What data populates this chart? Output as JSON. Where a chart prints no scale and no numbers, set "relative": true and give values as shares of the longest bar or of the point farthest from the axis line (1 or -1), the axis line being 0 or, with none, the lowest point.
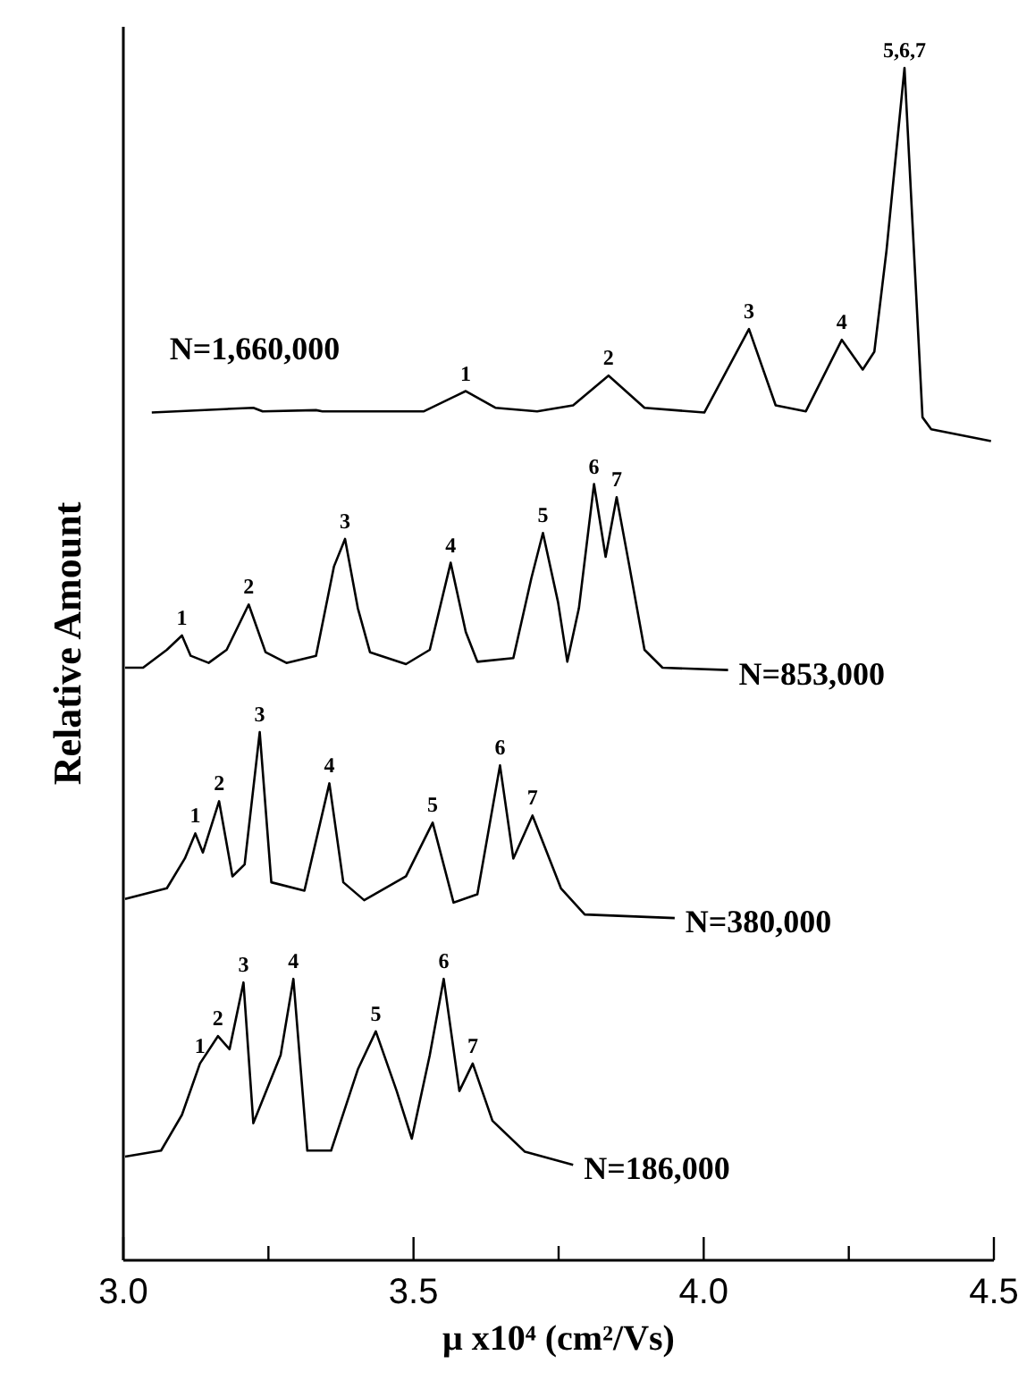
{
  "chart_data": {
    "type": "line",
    "relative": true,
    "xlabel": "μ x10⁴ (cm²/Vs)",
    "ylabel": "Relative Amount",
    "xlim": [
      3.0,
      4.5
    ],
    "xticks": [
      {
        "value": 3.0,
        "label": "3.0"
      },
      {
        "value": 3.25,
        "label": null
      },
      {
        "value": 3.5,
        "label": "3.5"
      },
      {
        "value": 3.75,
        "label": null
      },
      {
        "value": 4.0,
        "label": "4.0"
      },
      {
        "value": 4.25,
        "label": null
      },
      {
        "value": 4.5,
        "label": "4.5"
      }
    ],
    "series": [
      {
        "name": "N=1,660,000",
        "color": "#000000",
        "x": [
          3.049,
          3.224,
          3.24,
          3.332,
          3.343,
          3.518,
          3.59,
          3.641,
          3.713,
          3.775,
          3.836,
          3.898,
          4.001,
          4.078,
          4.124,
          4.176,
          4.238,
          4.274,
          4.294,
          4.315,
          4.346,
          4.377,
          4.392,
          4.495
        ],
        "values": [
          0.711,
          0.715,
          0.712,
          0.713,
          0.712,
          0.712,
          0.729,
          0.715,
          0.712,
          0.717,
          0.742,
          0.715,
          0.711,
          0.781,
          0.717,
          0.712,
          0.772,
          0.747,
          0.762,
          0.847,
          1.0,
          0.707,
          0.697,
          0.687
        ]
      },
      {
        "name": "N=853,000",
        "color": "#000000",
        "x": [
          3.003,
          3.034,
          3.075,
          3.101,
          3.116,
          3.147,
          3.178,
          3.216,
          3.245,
          3.281,
          3.332,
          3.363,
          3.382,
          3.404,
          3.425,
          3.487,
          3.528,
          3.564,
          3.59,
          3.61,
          3.672,
          3.703,
          3.723,
          3.749,
          3.765,
          3.785,
          3.811,
          3.831,
          3.85,
          3.872,
          3.898,
          3.929,
          4.042
        ],
        "values": [
          0.497,
          0.497,
          0.512,
          0.524,
          0.507,
          0.501,
          0.512,
          0.55,
          0.51,
          0.501,
          0.507,
          0.582,
          0.605,
          0.547,
          0.51,
          0.5,
          0.512,
          0.585,
          0.527,
          0.502,
          0.505,
          0.572,
          0.61,
          0.552,
          0.502,
          0.547,
          0.651,
          0.59,
          0.64,
          0.582,
          0.512,
          0.497,
          0.495
        ]
      },
      {
        "name": "N=380,000",
        "color": "#000000",
        "x": [
          3.003,
          3.075,
          3.106,
          3.124,
          3.137,
          3.165,
          3.188,
          3.209,
          3.235,
          3.255,
          3.312,
          3.355,
          3.379,
          3.415,
          3.487,
          3.533,
          3.569,
          3.61,
          3.649,
          3.672,
          3.705,
          3.754,
          3.795,
          3.95
        ],
        "values": [
          0.303,
          0.312,
          0.337,
          0.358,
          0.342,
          0.385,
          0.322,
          0.332,
          0.443,
          0.317,
          0.31,
          0.4,
          0.317,
          0.302,
          0.322,
          0.367,
          0.3,
          0.307,
          0.415,
          0.337,
          0.373,
          0.312,
          0.29,
          0.287
        ]
      },
      {
        "name": "N=186,000",
        "color": "#000000",
        "x": [
          3.003,
          3.065,
          3.101,
          3.132,
          3.163,
          3.183,
          3.207,
          3.224,
          3.271,
          3.293,
          3.317,
          3.358,
          3.404,
          3.435,
          3.471,
          3.497,
          3.528,
          3.552,
          3.579,
          3.602,
          3.636,
          3.692,
          3.775
        ],
        "values": [
          0.087,
          0.092,
          0.122,
          0.165,
          0.188,
          0.177,
          0.233,
          0.115,
          0.172,
          0.236,
          0.092,
          0.092,
          0.16,
          0.192,
          0.142,
          0.102,
          0.172,
          0.236,
          0.142,
          0.165,
          0.117,
          0.091,
          0.08
        ]
      }
    ],
    "annotations": [
      {
        "text": "1",
        "x": 3.59,
        "y": 0.729
      },
      {
        "text": "2",
        "x": 3.836,
        "y": 0.742
      },
      {
        "text": "3",
        "x": 4.078,
        "y": 0.781
      },
      {
        "text": "4",
        "x": 4.238,
        "y": 0.772
      },
      {
        "text": "5,6,7",
        "x": 4.346,
        "y": 1.0
      },
      {
        "text": "1",
        "x": 3.101,
        "y": 0.524
      },
      {
        "text": "2",
        "x": 3.216,
        "y": 0.55
      },
      {
        "text": "3",
        "x": 3.382,
        "y": 0.605
      },
      {
        "text": "4",
        "x": 3.564,
        "y": 0.585
      },
      {
        "text": "5",
        "x": 3.723,
        "y": 0.61
      },
      {
        "text": "6",
        "x": 3.811,
        "y": 0.651
      },
      {
        "text": "7",
        "x": 3.85,
        "y": 0.64
      },
      {
        "text": "1",
        "x": 3.124,
        "y": 0.358
      },
      {
        "text": "2",
        "x": 3.165,
        "y": 0.385
      },
      {
        "text": "3",
        "x": 3.235,
        "y": 0.443
      },
      {
        "text": "4",
        "x": 3.355,
        "y": 0.4
      },
      {
        "text": "5",
        "x": 3.533,
        "y": 0.367
      },
      {
        "text": "6",
        "x": 3.649,
        "y": 0.415
      },
      {
        "text": "7",
        "x": 3.705,
        "y": 0.373
      },
      {
        "text": "1",
        "x": 3.132,
        "y": 0.165
      },
      {
        "text": "2",
        "x": 3.163,
        "y": 0.188
      },
      {
        "text": "3",
        "x": 3.207,
        "y": 0.233
      },
      {
        "text": "4",
        "x": 3.293,
        "y": 0.236
      },
      {
        "text": "5",
        "x": 3.435,
        "y": 0.192
      },
      {
        "text": "6",
        "x": 3.552,
        "y": 0.236
      },
      {
        "text": "7",
        "x": 3.602,
        "y": 0.165
      }
    ]
  }
}
